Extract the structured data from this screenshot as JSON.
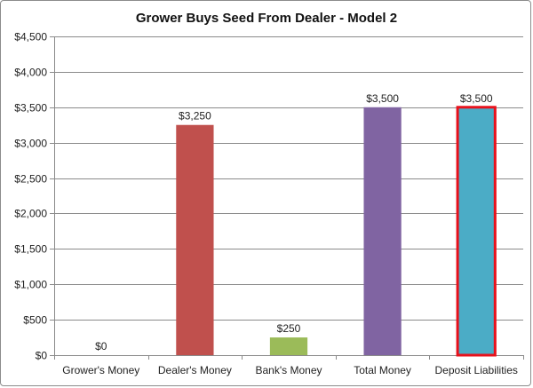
{
  "chart_data": {
    "type": "bar",
    "title": "Grower Buys Seed From Dealer - Model 2",
    "categories": [
      "Grower's Money",
      "Dealer's Money",
      "Bank's Money",
      "Total Money",
      "Deposit Liabilities"
    ],
    "values": [
      0,
      3250,
      250,
      3500,
      3500
    ],
    "value_labels": [
      "$0",
      "$3,250",
      "$250",
      "$3,500",
      "$3,500"
    ],
    "bar_colors": [
      "#4f81bd",
      "#c0504d",
      "#9bbb59",
      "#8064a2",
      "#4bacc6"
    ],
    "highlight": {
      "category": "Deposit Liabilities",
      "border_color": "#e8111b"
    },
    "ylim": [
      0,
      4500
    ],
    "y_ticks": [
      0,
      500,
      1000,
      1500,
      2000,
      2500,
      3000,
      3500,
      4000,
      4500
    ],
    "y_tick_labels": [
      "$0",
      "$500",
      "$1,000",
      "$1,500",
      "$2,000",
      "$2,500",
      "$3,000",
      "$3,500",
      "$4,000",
      "$4,500"
    ],
    "grid": true,
    "legend": "none"
  }
}
